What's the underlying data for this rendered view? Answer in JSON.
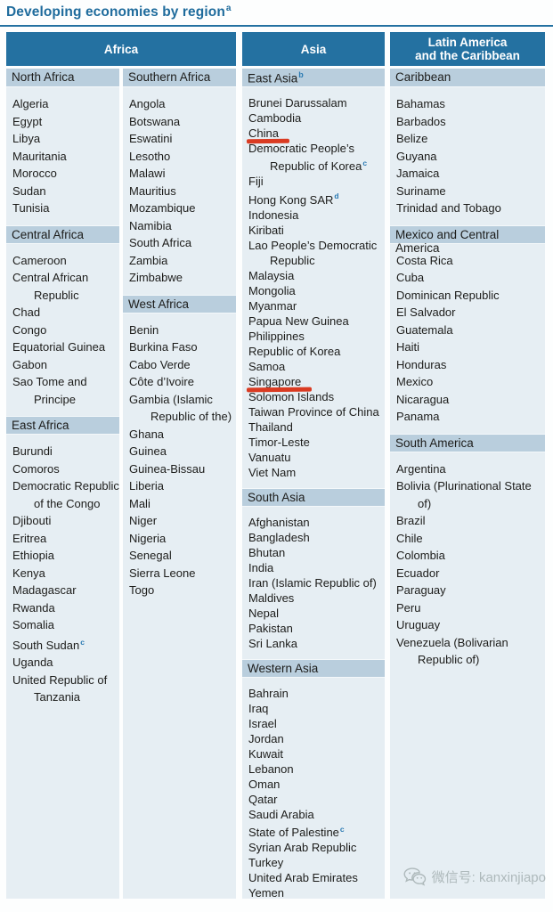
{
  "title": {
    "text": "Developing economies by region",
    "sup": "a"
  },
  "colors": {
    "header_bg": "#2471a1",
    "subheader_bg": "#b9cedd",
    "panel_bg": "#e6eef3",
    "title_color": "#1e6b9c",
    "footnote_marker_color": "#2b7ab2",
    "highlight_underline_color": "#da3b22",
    "watermark_color": "#aeb9bb"
  },
  "region_headers": [
    {
      "label": "Africa",
      "slug": "africa"
    },
    {
      "label": "Asia",
      "slug": "asia"
    },
    {
      "label": "Latin America\nand the Caribbean",
      "slug": "latin-america-and-the-caribbean"
    }
  ],
  "panels": [
    {
      "slug": "africa-left",
      "sections": [
        {
          "label": "North Africa",
          "countries": [
            "Algeria",
            "Egypt",
            "Libya",
            "Mauritania",
            "Morocco",
            "Sudan",
            "Tunisia"
          ]
        },
        {
          "label": "Central Africa",
          "countries": [
            "Cameroon",
            "Central African Republic",
            "Chad",
            "Congo",
            "Equatorial Guinea",
            "Gabon",
            "Sao Tome and Principe"
          ]
        },
        {
          "label": "East Africa",
          "countries": [
            "Burundi",
            "Comoros",
            "Democratic Republic of the Congo",
            "Djibouti",
            "Eritrea",
            "Ethiopia",
            "Kenya",
            "Madagascar",
            "Rwanda",
            "Somalia",
            {
              "name": "South Sudan",
              "sup": "c"
            },
            "Uganda",
            "United Republic of Tanzania"
          ]
        }
      ]
    },
    {
      "slug": "africa-right",
      "sections": [
        {
          "label": "Southern Africa",
          "countries": [
            "Angola",
            "Botswana",
            "Eswatini",
            "Lesotho",
            "Malawi",
            "Mauritius",
            "Mozambique",
            "Namibia",
            "South Africa",
            "Zambia",
            "Zimbabwe"
          ]
        },
        {
          "label": "West Africa",
          "countries": [
            "Benin",
            "Burkina Faso",
            "Cabo Verde",
            "Côte d’Ivoire",
            "Gambia (Islamic Republic of the)",
            "Ghana",
            "Guinea",
            "Guinea-Bissau",
            "Liberia",
            "Mali",
            "Niger",
            "Nigeria",
            "Senegal",
            "Sierra Leone",
            "Togo"
          ]
        }
      ]
    },
    {
      "slug": "asia",
      "sections": [
        {
          "label": "East Asia",
          "sup": "b",
          "countries": [
            "Brunei Darussalam",
            "Cambodia",
            {
              "name": "China",
              "underline": true
            },
            {
              "name": "Democratic People’s Republic of Korea",
              "sup": "c"
            },
            "Fiji",
            {
              "name": "Hong Kong SAR",
              "sup": "d"
            },
            "Indonesia",
            "Kiribati",
            "Lao People’s Democratic Republic",
            "Malaysia",
            "Mongolia",
            "Myanmar",
            "Papua New Guinea",
            "Philippines",
            "Republic of Korea",
            "Samoa",
            {
              "name": "Singapore",
              "underline": true
            },
            "Solomon Islands",
            "Taiwan Province of China",
            "Thailand",
            "Timor-Leste",
            "Vanuatu",
            "Viet Nam"
          ]
        },
        {
          "label": "South Asia",
          "countries": [
            "Afghanistan",
            "Bangladesh",
            "Bhutan",
            "India",
            "Iran (Islamic Republic of)",
            "Maldives",
            "Nepal",
            "Pakistan",
            "Sri Lanka"
          ]
        },
        {
          "label": "Western Asia",
          "countries": [
            "Bahrain",
            "Iraq",
            "Israel",
            "Jordan",
            "Kuwait",
            "Lebanon",
            "Oman",
            "Qatar",
            "Saudi Arabia",
            {
              "name": "State of Palestine",
              "sup": "c"
            },
            "Syrian Arab Republic",
            "Turkey",
            "United Arab Emirates",
            "Yemen"
          ]
        }
      ]
    },
    {
      "slug": "latin-america",
      "sections": [
        {
          "label": "Caribbean",
          "countries": [
            "Bahamas",
            "Barbados",
            "Belize",
            "Guyana",
            "Jamaica",
            "Suriname",
            "Trinidad and Tobago"
          ]
        },
        {
          "label": "Mexico and Central America",
          "countries": [
            "Costa Rica",
            "Cuba",
            "Dominican Republic",
            "El Salvador",
            "Guatemala",
            "Haiti",
            "Honduras",
            "Mexico",
            "Nicaragua",
            "Panama"
          ]
        },
        {
          "label": "South America",
          "countries": [
            "Argentina",
            "Bolivia (Plurinational State of)",
            "Brazil",
            "Chile",
            "Colombia",
            "Ecuador",
            "Paraguay",
            "Peru",
            "Uruguay",
            "Venezuela (Bolivarian Republic of)"
          ]
        }
      ]
    }
  ],
  "watermark": {
    "icon": "wechat-icon",
    "text": "微信号: kanxinjiapo"
  }
}
